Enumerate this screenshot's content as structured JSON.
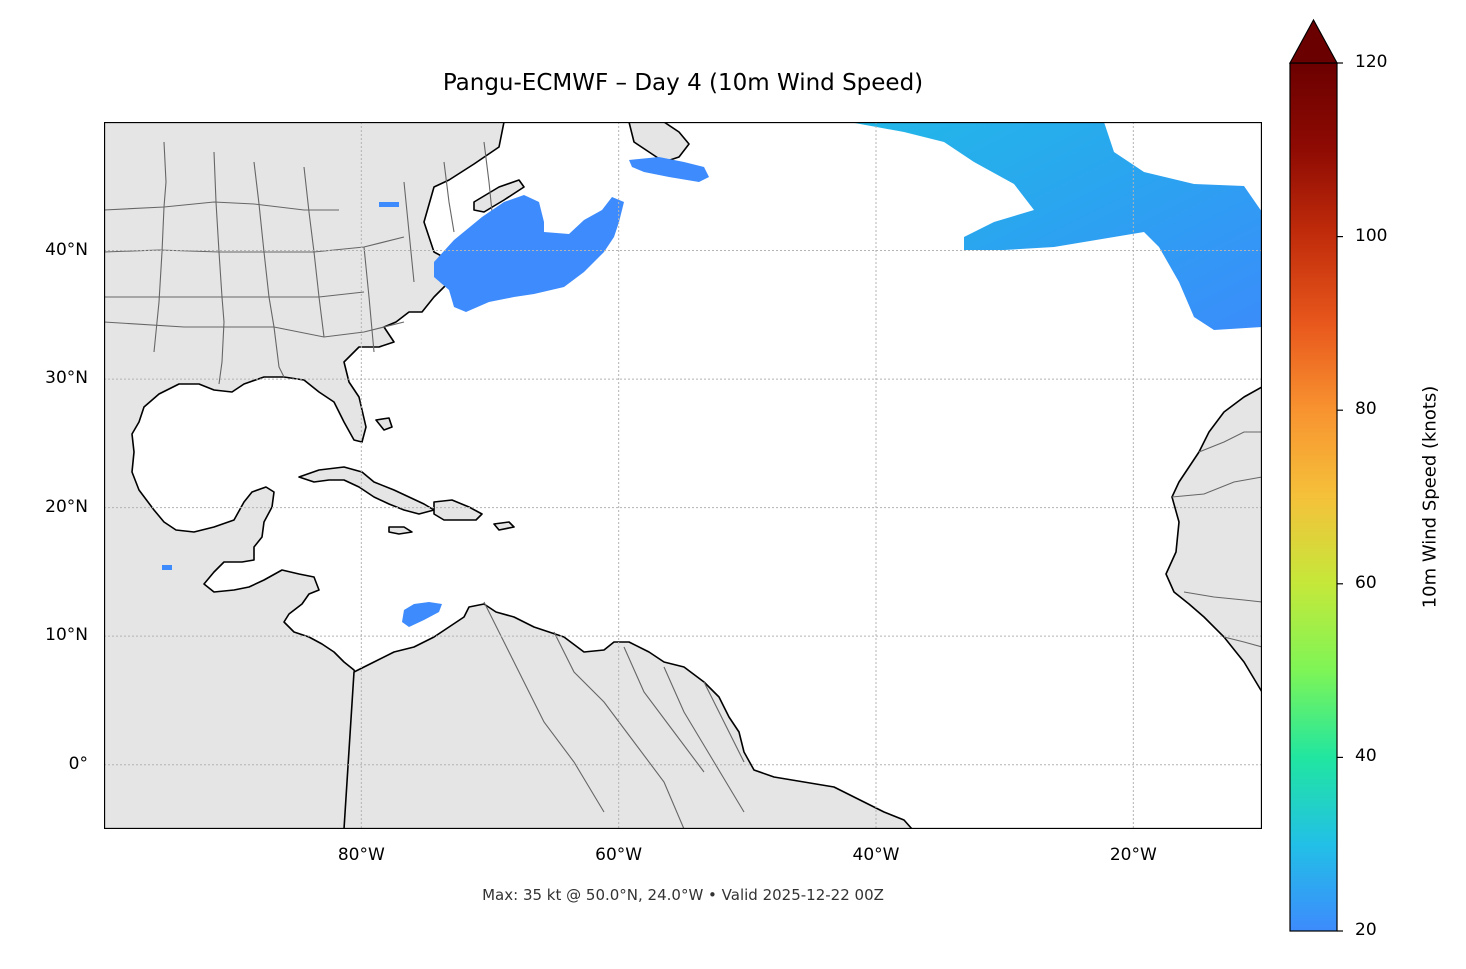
{
  "title": "Pangu-ECMWF – Day 4 (10m Wind Speed)",
  "footer": "Max: 35 kt @ 50.0°N, 24.0°W • Valid 2025-12-22 00Z",
  "map": {
    "lon_range": [
      -100,
      -10
    ],
    "lat_range": [
      -5,
      50
    ],
    "gridlines": true,
    "lat_ticks": [
      {
        "value": 40,
        "label": "40°N"
      },
      {
        "value": 30,
        "label": "30°N"
      },
      {
        "value": 20,
        "label": "20°N"
      },
      {
        "value": 10,
        "label": "10°N"
      },
      {
        "value": 0,
        "label": "0°"
      }
    ],
    "lon_ticks": [
      {
        "value": -80,
        "label": "80°W"
      },
      {
        "value": -60,
        "label": "60°W"
      },
      {
        "value": -40,
        "label": "40°W"
      },
      {
        "value": -20,
        "label": "20°W"
      }
    ],
    "colors": {
      "land": "#e5e5e5",
      "coast": "#000000",
      "borders": "#666666",
      "ocean": "#ffffff"
    }
  },
  "colorbar": {
    "label": "10m Wind Speed (knots)",
    "min": 20,
    "max": 120,
    "extend": "max",
    "ticks": [
      {
        "value": 20,
        "label": "20"
      },
      {
        "value": 40,
        "label": "40"
      },
      {
        "value": 60,
        "label": "60"
      },
      {
        "value": 80,
        "label": "80"
      },
      {
        "value": 100,
        "label": "100"
      },
      {
        "value": 120,
        "label": "120"
      }
    ],
    "colormap": [
      "#3d8bfd",
      "#22c0e6",
      "#21e6a0",
      "#7ef556",
      "#c5e83a",
      "#f5c13a",
      "#f89330",
      "#e8571c",
      "#c22d0b",
      "#8f0b03",
      "#6b0000"
    ]
  },
  "chart_data": {
    "type": "heatmap",
    "title": "Pangu-ECMWF – Day 4 (10m Wind Speed)",
    "variable": "10m Wind Speed",
    "units": "knots",
    "max": {
      "value": 35,
      "lat": 50.0,
      "lon": -24.0
    },
    "valid": "2025-12-22 00Z"
  }
}
